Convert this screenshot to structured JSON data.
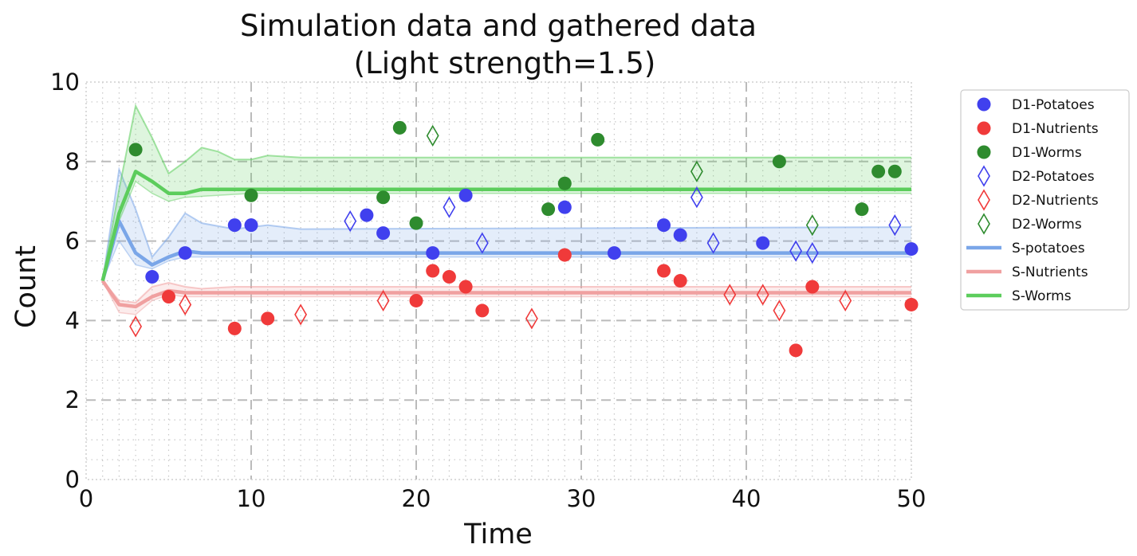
{
  "chart_data": {
    "type": "scatter",
    "title": "Simulation data and gathered data",
    "subtitle": "(Light strength=1.5)",
    "xlabel": "Time",
    "ylabel": "Count",
    "xlim": [
      0,
      50
    ],
    "ylim": [
      0,
      10
    ],
    "xticks": [
      0,
      10,
      20,
      30,
      40,
      50
    ],
    "yticks": [
      0,
      2,
      4,
      6,
      8,
      10
    ],
    "grid": true,
    "legend_position": "outside-right",
    "series": [
      {
        "name": "D1-Potatoes",
        "kind": "marker-circle",
        "color": "#4040ee",
        "points": [
          [
            4,
            5.1
          ],
          [
            6,
            5.7
          ],
          [
            9,
            6.4
          ],
          [
            10,
            6.4
          ],
          [
            17,
            6.65
          ],
          [
            18,
            6.2
          ],
          [
            21,
            5.7
          ],
          [
            23,
            7.15
          ],
          [
            29,
            6.85
          ],
          [
            32,
            5.7
          ],
          [
            35,
            6.4
          ],
          [
            36,
            6.15
          ],
          [
            41,
            5.95
          ],
          [
            50,
            5.8
          ]
        ]
      },
      {
        "name": "D1-Nutrients",
        "kind": "marker-circle",
        "color": "#f03a3a",
        "points": [
          [
            5,
            4.6
          ],
          [
            9,
            3.8
          ],
          [
            11,
            4.05
          ],
          [
            20,
            4.5
          ],
          [
            21,
            5.25
          ],
          [
            22,
            5.1
          ],
          [
            23,
            4.85
          ],
          [
            24,
            4.25
          ],
          [
            29,
            5.65
          ],
          [
            35,
            5.25
          ],
          [
            36,
            5.0
          ],
          [
            43,
            3.25
          ],
          [
            44,
            4.85
          ],
          [
            50,
            4.4
          ]
        ]
      },
      {
        "name": "D1-Worms",
        "kind": "marker-circle",
        "color": "#2e8b2e",
        "points": [
          [
            3,
            8.3
          ],
          [
            10,
            7.15
          ],
          [
            18,
            7.1
          ],
          [
            19,
            8.85
          ],
          [
            20,
            6.45
          ],
          [
            28,
            6.8
          ],
          [
            29,
            7.45
          ],
          [
            31,
            8.55
          ],
          [
            42,
            8.0
          ],
          [
            47,
            6.8
          ],
          [
            48,
            7.75
          ],
          [
            49,
            7.75
          ]
        ]
      },
      {
        "name": "D2-Potatoes",
        "kind": "marker-diamond",
        "color": "#4040ee",
        "points": [
          [
            16,
            6.5
          ],
          [
            22,
            6.85
          ],
          [
            24,
            5.95
          ],
          [
            37,
            7.1
          ],
          [
            38,
            5.95
          ],
          [
            43,
            5.75
          ],
          [
            44,
            5.7
          ],
          [
            49,
            6.4
          ]
        ]
      },
      {
        "name": "D2-Nutrients",
        "kind": "marker-diamond",
        "color": "#f03a3a",
        "points": [
          [
            3,
            3.85
          ],
          [
            6,
            4.4
          ],
          [
            13,
            4.15
          ],
          [
            18,
            4.5
          ],
          [
            27,
            4.05
          ],
          [
            39,
            4.65
          ],
          [
            41,
            4.65
          ],
          [
            42,
            4.25
          ],
          [
            46,
            4.5
          ]
        ]
      },
      {
        "name": "D2-Worms",
        "kind": "marker-diamond",
        "color": "#2e8b2e",
        "points": [
          [
            21,
            8.65
          ],
          [
            37,
            7.75
          ],
          [
            44,
            6.4
          ]
        ]
      },
      {
        "name": "S-potatoes",
        "kind": "line",
        "color": "#7aa6e8",
        "mean": [
          [
            1,
            5.0
          ],
          [
            2,
            6.5
          ],
          [
            3,
            5.7
          ],
          [
            4,
            5.4
          ],
          [
            5,
            5.6
          ],
          [
            6,
            5.75
          ],
          [
            7,
            5.7
          ],
          [
            10,
            5.7
          ],
          [
            50,
            5.7
          ]
        ],
        "upper": [
          [
            1,
            5.0
          ],
          [
            2,
            7.8
          ],
          [
            3,
            6.8
          ],
          [
            4,
            5.6
          ],
          [
            5,
            6.1
          ],
          [
            6,
            6.7
          ],
          [
            7,
            6.45
          ],
          [
            9,
            6.3
          ],
          [
            10,
            6.35
          ],
          [
            11,
            6.4
          ],
          [
            13,
            6.3
          ],
          [
            50,
            6.35
          ]
        ],
        "lower": [
          [
            1,
            5.0
          ],
          [
            2,
            6.0
          ],
          [
            3,
            5.4
          ],
          [
            4,
            5.3
          ],
          [
            5,
            5.5
          ],
          [
            6,
            5.6
          ],
          [
            10,
            5.6
          ],
          [
            50,
            5.6
          ]
        ]
      },
      {
        "name": "S-Nutrients",
        "kind": "line",
        "color": "#f0a0a0",
        "mean": [
          [
            1,
            5.0
          ],
          [
            2,
            4.4
          ],
          [
            3,
            4.35
          ],
          [
            4,
            4.6
          ],
          [
            5,
            4.75
          ],
          [
            6,
            4.7
          ],
          [
            10,
            4.7
          ],
          [
            50,
            4.7
          ]
        ],
        "upper": [
          [
            1,
            5.0
          ],
          [
            2,
            4.5
          ],
          [
            3,
            4.45
          ],
          [
            4,
            4.85
          ],
          [
            5,
            4.95
          ],
          [
            6,
            4.85
          ],
          [
            7,
            4.8
          ],
          [
            9,
            4.85
          ],
          [
            50,
            4.85
          ]
        ],
        "lower": [
          [
            1,
            5.0
          ],
          [
            2,
            4.2
          ],
          [
            3,
            4.15
          ],
          [
            4,
            4.5
          ],
          [
            5,
            4.65
          ],
          [
            6,
            4.6
          ],
          [
            50,
            4.6
          ]
        ]
      },
      {
        "name": "S-Worms",
        "kind": "line",
        "color": "#5ccd5c",
        "mean": [
          [
            1,
            5.0
          ],
          [
            2,
            6.7
          ],
          [
            3,
            7.75
          ],
          [
            4,
            7.5
          ],
          [
            5,
            7.2
          ],
          [
            6,
            7.2
          ],
          [
            7,
            7.3
          ],
          [
            10,
            7.3
          ],
          [
            50,
            7.3
          ]
        ],
        "upper": [
          [
            1,
            5.0
          ],
          [
            2,
            7.3
          ],
          [
            3,
            9.4
          ],
          [
            4,
            8.6
          ],
          [
            5,
            7.7
          ],
          [
            6,
            8.0
          ],
          [
            7,
            8.35
          ],
          [
            8,
            8.25
          ],
          [
            9,
            8.05
          ],
          [
            10,
            8.05
          ],
          [
            11,
            8.15
          ],
          [
            13,
            8.1
          ],
          [
            50,
            8.1
          ]
        ],
        "lower": [
          [
            1,
            5.0
          ],
          [
            2,
            6.5
          ],
          [
            3,
            7.5
          ],
          [
            4,
            7.2
          ],
          [
            5,
            7.0
          ],
          [
            6,
            7.1
          ],
          [
            10,
            7.2
          ],
          [
            50,
            7.2
          ]
        ]
      }
    ]
  }
}
